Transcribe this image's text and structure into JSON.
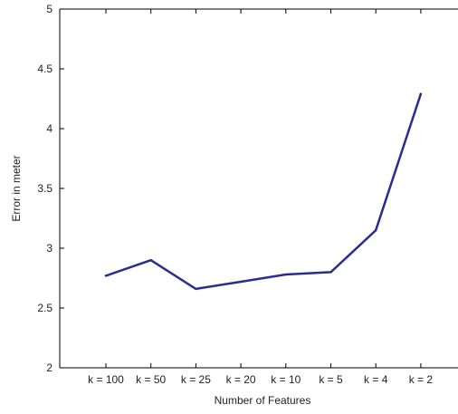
{
  "chart_data": {
    "type": "line",
    "title": "",
    "xlabel": "Number of Features",
    "ylabel": "Error in meter",
    "categories": [
      "k = 100",
      "k = 50",
      "k = 25",
      "k = 20",
      "k = 10",
      "k = 5",
      "k = 4",
      "k = 2"
    ],
    "series": [
      {
        "values": [
          2.77,
          2.9,
          2.66,
          2.72,
          2.78,
          2.8,
          3.15,
          4.29
        ]
      }
    ],
    "ylim": [
      2,
      5
    ],
    "yticks": [
      2,
      2.5,
      3,
      3.5,
      4,
      4.5,
      5
    ],
    "ytick_labels": [
      "2",
      "2.5",
      "3",
      "3.5",
      "4",
      "4.5",
      "5"
    ],
    "grid": false,
    "legend": "none",
    "colors": {
      "line": "#2b2d8c",
      "axis": "#000000",
      "text": "#222222"
    }
  }
}
